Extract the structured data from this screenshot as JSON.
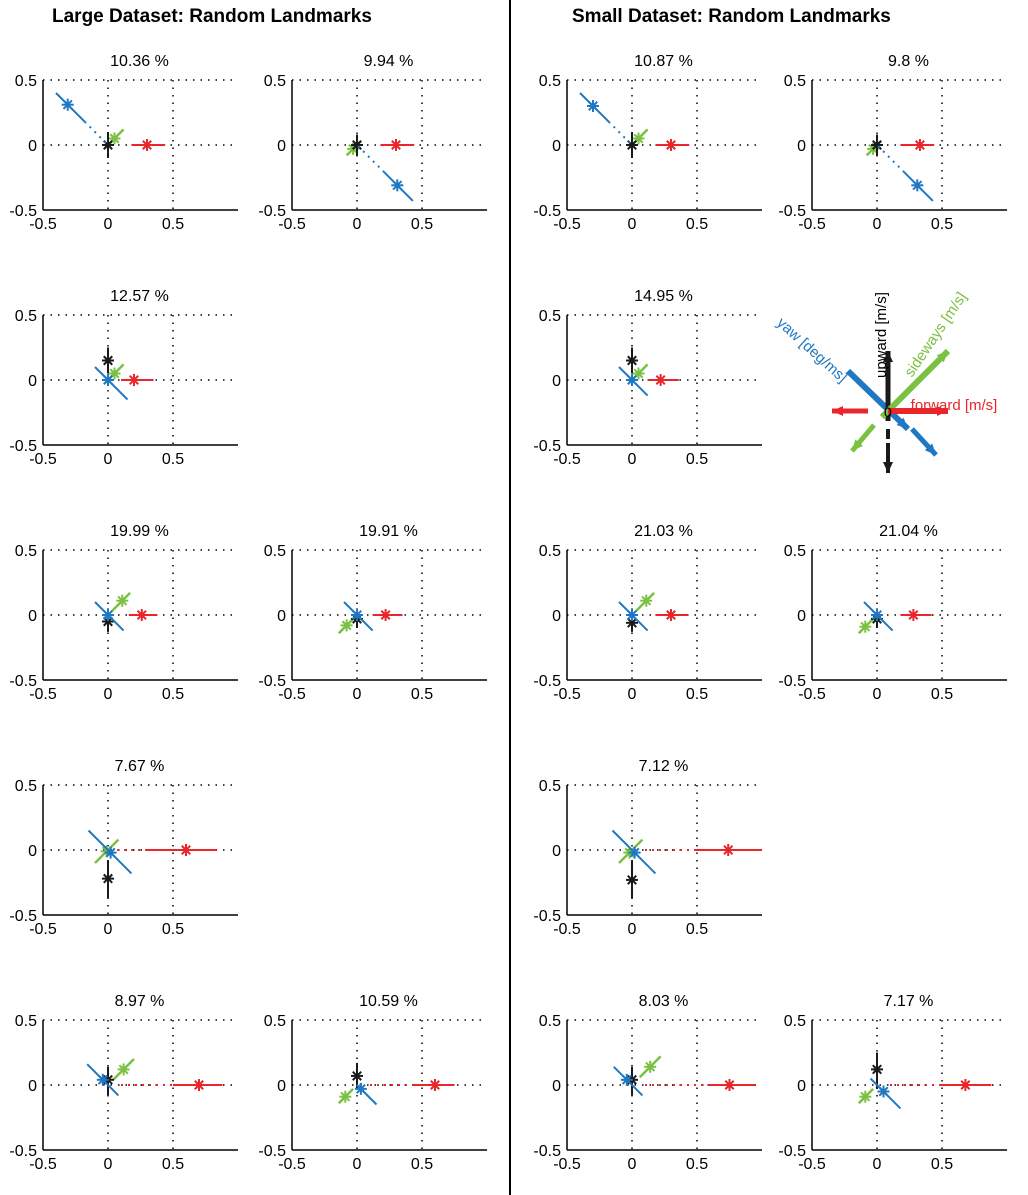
{
  "headings": {
    "left": "Large Dataset: Random Landmarks",
    "right": "Small Dataset: Random Landmarks"
  },
  "colors": {
    "forward": "#e8262b",
    "sideways": "#7ac143",
    "upward": "#1a1a1a",
    "yaw": "#1f78c1",
    "grid": "#000000"
  },
  "axes": {
    "xlim": [
      -0.5,
      1.0
    ],
    "ylim": [
      -0.5,
      0.5
    ],
    "xticks": [
      -0.5,
      0,
      0.5
    ],
    "yticks": [
      -0.5,
      0,
      0.5
    ],
    "xtick_labels": [
      "-0.5",
      "0",
      "0.5"
    ],
    "ytick_labels": [
      "-0.5",
      "0",
      "0.5"
    ]
  },
  "legend": {
    "forward": "forward [m/s]",
    "sideways": "sideways [m/s]",
    "upward": "upward [m/s]",
    "yaw": "yaw [deg/ms]",
    "origin": "0"
  },
  "chart_data": [
    {
      "type": "scatter",
      "dataset": "large",
      "row": 1,
      "col": 1,
      "title": "10.36 %",
      "forward": {
        "value": 0.3,
        "from": 0.18,
        "to": 0.44
      },
      "sideways": {
        "value": 0.05,
        "from": -0.02,
        "to": 0.12
      },
      "upward": {
        "value": 0.0,
        "from": -0.1,
        "to": 0.1
      },
      "yaw": {
        "value": 0.31,
        "from": 0.4,
        "to": 0.0
      }
    },
    {
      "type": "scatter",
      "dataset": "large",
      "row": 1,
      "col": 2,
      "title": "9.94 %",
      "forward": {
        "value": 0.3,
        "from": 0.18,
        "to": 0.44
      },
      "sideways": {
        "value": -0.03,
        "from": -0.08,
        "to": 0.03
      },
      "upward": {
        "value": 0.0,
        "from": -0.08,
        "to": 0.08
      },
      "yaw": {
        "value": -0.31,
        "from": 0.0,
        "to": -0.43
      }
    },
    {
      "type": "scatter",
      "dataset": "large",
      "row": 2,
      "col": 1,
      "title": "12.57 %",
      "forward": {
        "value": 0.2,
        "from": 0.1,
        "to": 0.35
      },
      "sideways": {
        "value": 0.05,
        "from": -0.02,
        "to": 0.12
      },
      "upward": {
        "value": 0.15,
        "from": 0.05,
        "to": 0.25
      },
      "yaw": {
        "value": 0.0,
        "from": 0.1,
        "to": -0.15
      }
    },
    {
      "type": "scatter",
      "dataset": "large",
      "row": 3,
      "col": 1,
      "title": "19.99 %",
      "forward": {
        "value": 0.26,
        "from": 0.16,
        "to": 0.38
      },
      "sideways": {
        "value": 0.11,
        "from": 0.03,
        "to": 0.17
      },
      "upward": {
        "value": -0.05,
        "from": -0.13,
        "to": 0.05
      },
      "yaw": {
        "value": 0.0,
        "from": 0.1,
        "to": -0.12
      }
    },
    {
      "type": "scatter",
      "dataset": "large",
      "row": 3,
      "col": 2,
      "title": "19.91 %",
      "forward": {
        "value": 0.22,
        "from": 0.12,
        "to": 0.35
      },
      "sideways": {
        "value": -0.08,
        "from": -0.14,
        "to": 0.0
      },
      "upward": {
        "value": -0.03,
        "from": -0.1,
        "to": 0.05
      },
      "yaw": {
        "value": 0.0,
        "from": 0.1,
        "to": -0.12
      }
    },
    {
      "type": "scatter",
      "dataset": "large",
      "row": 4,
      "col": 1,
      "title": "7.67 %",
      "forward": {
        "value": 0.6,
        "from": 0.3,
        "to": 0.84,
        "dotted_from": 0.07
      },
      "sideways": {
        "value": -0.01,
        "from": -0.1,
        "to": 0.08
      },
      "upward": {
        "value": -0.22,
        "from": -0.37,
        "to": -0.08
      },
      "yaw": {
        "value": -0.02,
        "from": 0.15,
        "to": -0.18
      }
    },
    {
      "type": "scatter",
      "dataset": "large",
      "row": 5,
      "col": 1,
      "title": "8.97 %",
      "forward": {
        "value": 0.7,
        "from": 0.5,
        "to": 0.88,
        "dotted_from": 0.1
      },
      "sideways": {
        "value": 0.12,
        "from": 0.04,
        "to": 0.2
      },
      "upward": {
        "value": 0.04,
        "from": -0.08,
        "to": 0.14
      },
      "yaw": {
        "value": 0.04,
        "from": 0.16,
        "to": -0.08
      }
    },
    {
      "type": "scatter",
      "dataset": "large",
      "row": 5,
      "col": 2,
      "title": "10.59 %",
      "forward": {
        "value": 0.6,
        "from": 0.43,
        "to": 0.75,
        "dotted_from": 0.1
      },
      "sideways": {
        "value": -0.09,
        "from": -0.14,
        "to": -0.03
      },
      "upward": {
        "value": 0.07,
        "from": -0.03,
        "to": 0.17
      },
      "yaw": {
        "value": -0.03,
        "from": 0.0,
        "to": -0.15
      }
    },
    {
      "type": "scatter",
      "dataset": "small",
      "row": 1,
      "col": 1,
      "title": "10.87 %",
      "forward": {
        "value": 0.3,
        "from": 0.18,
        "to": 0.44
      },
      "sideways": {
        "value": 0.05,
        "from": -0.02,
        "to": 0.12
      },
      "upward": {
        "value": 0.0,
        "from": -0.1,
        "to": 0.1
      },
      "yaw": {
        "value": 0.3,
        "from": 0.4,
        "to": 0.0
      }
    },
    {
      "type": "scatter",
      "dataset": "small",
      "row": 1,
      "col": 2,
      "title": "9.8 %",
      "forward": {
        "value": 0.33,
        "from": 0.18,
        "to": 0.44
      },
      "sideways": {
        "value": -0.03,
        "from": -0.08,
        "to": 0.03
      },
      "upward": {
        "value": 0.0,
        "from": -0.08,
        "to": 0.08
      },
      "yaw": {
        "value": -0.31,
        "from": 0.0,
        "to": -0.43
      }
    },
    {
      "type": "scatter",
      "dataset": "small",
      "row": 2,
      "col": 1,
      "title": "14.95 %",
      "forward": {
        "value": 0.22,
        "from": 0.12,
        "to": 0.36
      },
      "sideways": {
        "value": 0.05,
        "from": -0.02,
        "to": 0.12
      },
      "upward": {
        "value": 0.15,
        "from": 0.05,
        "to": 0.25
      },
      "yaw": {
        "value": 0.0,
        "from": 0.1,
        "to": -0.12
      }
    },
    {
      "type": "scatter",
      "dataset": "small",
      "row": 3,
      "col": 1,
      "title": "21.03 %",
      "forward": {
        "value": 0.3,
        "from": 0.18,
        "to": 0.43
      },
      "sideways": {
        "value": 0.11,
        "from": 0.03,
        "to": 0.17
      },
      "upward": {
        "value": -0.06,
        "from": -0.13,
        "to": 0.05
      },
      "yaw": {
        "value": 0.0,
        "from": 0.1,
        "to": -0.12
      }
    },
    {
      "type": "scatter",
      "dataset": "small",
      "row": 3,
      "col": 2,
      "title": "21.04 %",
      "forward": {
        "value": 0.28,
        "from": 0.18,
        "to": 0.42
      },
      "sideways": {
        "value": -0.09,
        "from": -0.14,
        "to": 0.0
      },
      "upward": {
        "value": -0.03,
        "from": -0.1,
        "to": 0.05
      },
      "yaw": {
        "value": 0.0,
        "from": 0.1,
        "to": -0.12
      }
    },
    {
      "type": "scatter",
      "dataset": "small",
      "row": 4,
      "col": 1,
      "title": "7.12 %",
      "forward": {
        "value": 0.74,
        "from": 0.48,
        "to": 1.0,
        "dotted_from": 0.1
      },
      "sideways": {
        "value": -0.02,
        "from": -0.1,
        "to": 0.08
      },
      "upward": {
        "value": -0.23,
        "from": -0.37,
        "to": -0.08
      },
      "yaw": {
        "value": -0.02,
        "from": 0.15,
        "to": -0.18
      }
    },
    {
      "type": "scatter",
      "dataset": "small",
      "row": 5,
      "col": 1,
      "title": "8.03 %",
      "forward": {
        "value": 0.75,
        "from": 0.58,
        "to": 0.95,
        "dotted_from": 0.1
      },
      "sideways": {
        "value": 0.14,
        "from": 0.06,
        "to": 0.22
      },
      "upward": {
        "value": 0.04,
        "from": -0.08,
        "to": 0.14
      },
      "yaw": {
        "value": 0.04,
        "from": 0.14,
        "to": -0.08
      }
    },
    {
      "type": "scatter",
      "dataset": "small",
      "row": 5,
      "col": 2,
      "title": "7.17 %",
      "forward": {
        "value": 0.68,
        "from": 0.48,
        "to": 0.88,
        "dotted_from": 0.1
      },
      "sideways": {
        "value": -0.09,
        "from": -0.14,
        "to": -0.03
      },
      "upward": {
        "value": 0.12,
        "from": -0.03,
        "to": 0.25
      },
      "yaw": {
        "value": -0.05,
        "from": 0.05,
        "to": -0.18
      }
    }
  ]
}
